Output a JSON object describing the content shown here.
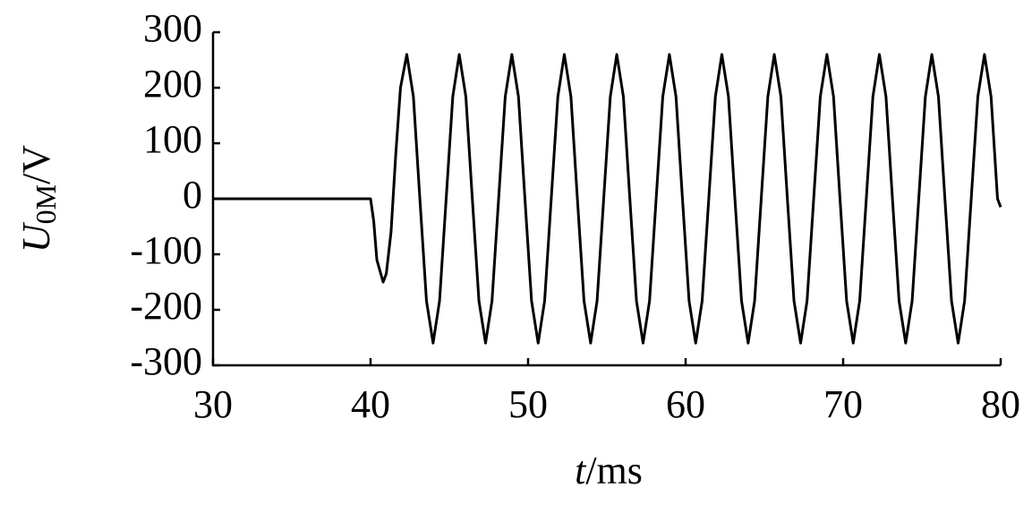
{
  "chart_data": {
    "type": "line",
    "x_label": {
      "symbol": "t",
      "unit": "/ms"
    },
    "y_label": {
      "symbol": "U",
      "subscript": "0M",
      "unit": "/V"
    },
    "xlim": [
      30,
      80
    ],
    "xticks": [
      30,
      40,
      50,
      60,
      70,
      80
    ],
    "ylim": [
      -300,
      300
    ],
    "yticks": [
      -300,
      -200,
      -100,
      0,
      100,
      200,
      300
    ],
    "grid": false,
    "series": [
      {
        "color": "#000000",
        "x": [
          30,
          40,
          40.2,
          40.4,
          40.6,
          40.8,
          41.0,
          41.3,
          41.6,
          41.9,
          42.3,
          42.72,
          43.13,
          43.55,
          43.97,
          44.38,
          44.8,
          45.22,
          45.63,
          46.05,
          46.46,
          46.88,
          47.3,
          47.71,
          48.13,
          48.55,
          48.97,
          49.39,
          49.8,
          50.22,
          50.64,
          51.05,
          51.47,
          51.89,
          52.3,
          52.72,
          53.13,
          53.55,
          53.97,
          54.38,
          54.8,
          55.22,
          55.63,
          56.05,
          56.46,
          56.88,
          57.3,
          57.71,
          58.13,
          58.55,
          58.97,
          59.39,
          59.8,
          60.22,
          60.64,
          61.05,
          61.47,
          61.89,
          62.3,
          62.72,
          63.13,
          63.55,
          63.97,
          64.38,
          64.8,
          65.22,
          65.63,
          66.05,
          66.46,
          66.88,
          67.3,
          67.71,
          68.13,
          68.55,
          68.97,
          69.39,
          69.8,
          70.22,
          70.64,
          71.05,
          71.47,
          71.89,
          72.3,
          72.72,
          73.13,
          73.55,
          73.97,
          74.38,
          74.8,
          75.22,
          75.63,
          76.05,
          76.46,
          76.88,
          77.3,
          77.71,
          78.13,
          78.55,
          78.97,
          79.39,
          79.8,
          80
        ],
        "values": [
          0,
          0,
          -40,
          -110,
          -130,
          -150,
          -135,
          -60,
          80,
          200,
          260,
          184,
          0,
          -184,
          -260,
          -184,
          0,
          184,
          260,
          184,
          0,
          -184,
          -260,
          -184,
          0,
          184,
          260,
          184,
          0,
          -184,
          -260,
          -184,
          0,
          184,
          260,
          184,
          0,
          -184,
          -260,
          -184,
          0,
          184,
          260,
          184,
          0,
          -184,
          -260,
          -184,
          0,
          184,
          260,
          184,
          0,
          -184,
          -260,
          -184,
          0,
          184,
          260,
          184,
          0,
          -184,
          -260,
          -184,
          0,
          184,
          260,
          184,
          0,
          -184,
          -260,
          -184,
          0,
          184,
          260,
          184,
          0,
          -184,
          -260,
          -184,
          0,
          184,
          260,
          184,
          0,
          -184,
          -260,
          -184,
          0,
          184,
          260,
          184,
          0,
          -184,
          -260,
          -184,
          0,
          184,
          260,
          184,
          0,
          -15
        ]
      }
    ]
  }
}
